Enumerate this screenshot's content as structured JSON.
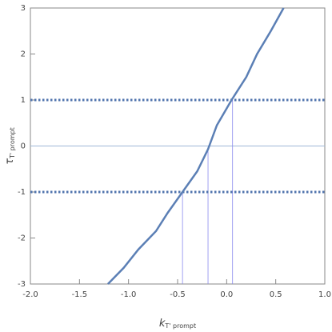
{
  "chart_data": {
    "type": "line",
    "xlabel": {
      "main": "k",
      "sub": "T' prompt"
    },
    "ylabel": {
      "main": "τ",
      "sub": "T' prompt"
    },
    "xlim": [
      -2,
      1
    ],
    "ylim": [
      -3,
      3
    ],
    "xticks": [
      {
        "value": -2,
        "label": "-2.0"
      },
      {
        "value": -1.5,
        "label": "-1.5"
      },
      {
        "value": -1,
        "label": "-1.0"
      },
      {
        "value": -0.5,
        "label": "-0.5"
      },
      {
        "value": 0,
        "label": "0.0"
      },
      {
        "value": 0.5,
        "label": "0.5"
      },
      {
        "value": 1,
        "label": "1.0"
      }
    ],
    "yticks": [
      -3,
      -2,
      -1,
      0,
      1,
      2,
      3
    ],
    "series": [
      {
        "color": "#5b7fb5",
        "x": [
          -1.21,
          -1.05,
          -0.9,
          -0.72,
          -0.6,
          -0.45,
          -0.3,
          -0.19,
          -0.1,
          0.05,
          0.2,
          0.31,
          0.45,
          0.58
        ],
        "values": [
          -3,
          -2.65,
          -2.25,
          -1.85,
          -1.45,
          -1,
          -0.55,
          -0.07,
          0.45,
          1,
          1.5,
          2,
          2.5,
          3
        ]
      }
    ],
    "hlines": [
      -1,
      1
    ],
    "zero_line": 0,
    "vlines": [
      {
        "x": -0.45,
        "y": -1
      },
      {
        "x": -0.19,
        "y": -0.07
      },
      {
        "x": 0.06,
        "y": 1
      }
    ]
  }
}
